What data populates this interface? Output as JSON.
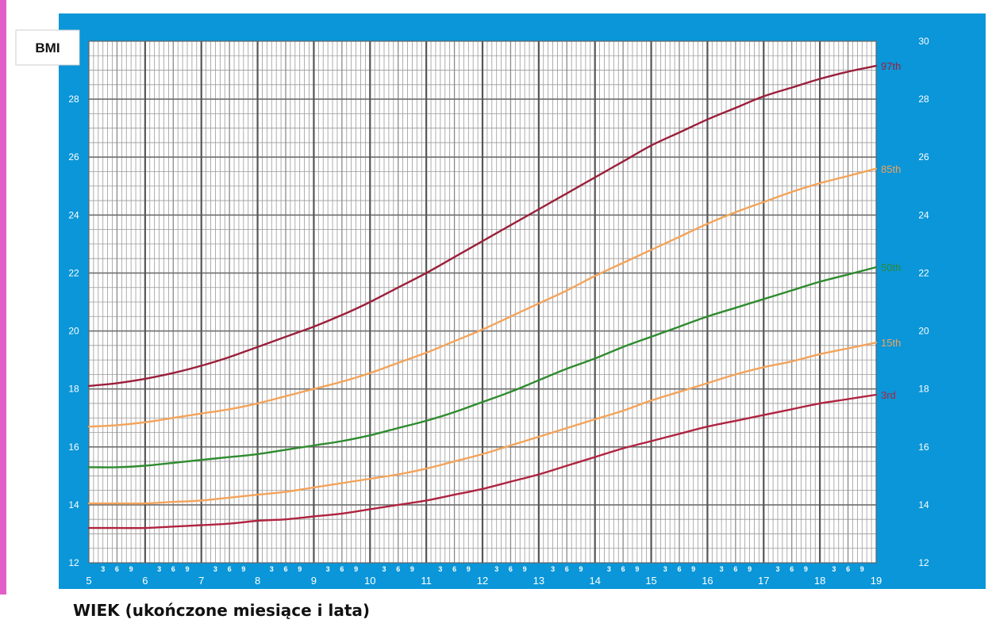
{
  "caption": "WIEK (ukończone miesiące i lata)",
  "colors": {
    "frame": "#0a96d8",
    "accent": "#e35fc8",
    "p97": "#9b1f3a",
    "p85": "#f3a35a",
    "p50": "#2e8b2e",
    "p15": "#f3a35a",
    "p3": "#b0233f"
  },
  "chart_data": {
    "type": "line",
    "title": "",
    "ylabel": "BMI",
    "xlabel": "WIEK (ukończone miesiące i lata)",
    "xlim": [
      5,
      19
    ],
    "ylim": [
      12,
      30
    ],
    "x_ticks": [
      "5",
      "6",
      "7",
      "8",
      "9",
      "10",
      "11",
      "12",
      "13",
      "14",
      "15",
      "16",
      "17",
      "18",
      "19"
    ],
    "y_ticks_left": [
      "12",
      "14",
      "16",
      "18",
      "20",
      "22",
      "24",
      "26",
      "28"
    ],
    "y_ticks_right": [
      "12",
      "14",
      "16",
      "18",
      "20",
      "22",
      "24",
      "26",
      "28",
      "30"
    ],
    "month_ticks": [
      "3",
      "6",
      "9"
    ],
    "grid": true,
    "x": [
      5,
      5.5,
      6,
      6.5,
      7,
      7.5,
      8,
      8.5,
      9,
      9.5,
      10,
      10.5,
      11,
      11.5,
      12,
      12.5,
      13,
      13.5,
      14,
      14.5,
      15,
      15.5,
      16,
      16.5,
      17,
      17.5,
      18,
      18.5,
      19
    ],
    "series": [
      {
        "name": "97th",
        "color": "#9b1f3a",
        "values": [
          18.1,
          18.2,
          18.35,
          18.55,
          18.8,
          19.1,
          19.45,
          19.8,
          20.15,
          20.55,
          21.0,
          21.5,
          22.0,
          22.55,
          23.1,
          23.65,
          24.2,
          24.75,
          25.3,
          25.85,
          26.4,
          26.85,
          27.3,
          27.7,
          28.1,
          28.4,
          28.7,
          28.95,
          29.15
        ]
      },
      {
        "name": "85th",
        "color": "#f3a35a",
        "values": [
          16.7,
          16.75,
          16.85,
          17.0,
          17.15,
          17.3,
          17.5,
          17.75,
          18.0,
          18.25,
          18.55,
          18.9,
          19.25,
          19.65,
          20.05,
          20.5,
          20.95,
          21.4,
          21.9,
          22.35,
          22.8,
          23.25,
          23.7,
          24.1,
          24.45,
          24.8,
          25.1,
          25.35,
          25.6
        ]
      },
      {
        "name": "50th",
        "color": "#2e8b2e",
        "values": [
          15.3,
          15.3,
          15.35,
          15.45,
          15.55,
          15.65,
          15.75,
          15.9,
          16.05,
          16.2,
          16.4,
          16.65,
          16.9,
          17.2,
          17.55,
          17.9,
          18.3,
          18.7,
          19.05,
          19.45,
          19.8,
          20.15,
          20.5,
          20.8,
          21.1,
          21.4,
          21.7,
          21.95,
          22.2
        ]
      },
      {
        "name": "15th",
        "color": "#f3a35a",
        "values": [
          14.05,
          14.05,
          14.05,
          14.1,
          14.15,
          14.25,
          14.35,
          14.45,
          14.6,
          14.75,
          14.9,
          15.05,
          15.25,
          15.5,
          15.75,
          16.05,
          16.35,
          16.65,
          16.95,
          17.25,
          17.6,
          17.9,
          18.2,
          18.5,
          18.75,
          18.95,
          19.2,
          19.4,
          19.6
        ]
      },
      {
        "name": "3rd",
        "color": "#b0233f",
        "values": [
          13.2,
          13.2,
          13.2,
          13.25,
          13.3,
          13.35,
          13.45,
          13.5,
          13.6,
          13.7,
          13.85,
          14.0,
          14.15,
          14.35,
          14.55,
          14.8,
          15.05,
          15.35,
          15.65,
          15.95,
          16.2,
          16.45,
          16.7,
          16.9,
          17.1,
          17.3,
          17.5,
          17.65,
          17.8
        ]
      }
    ]
  }
}
